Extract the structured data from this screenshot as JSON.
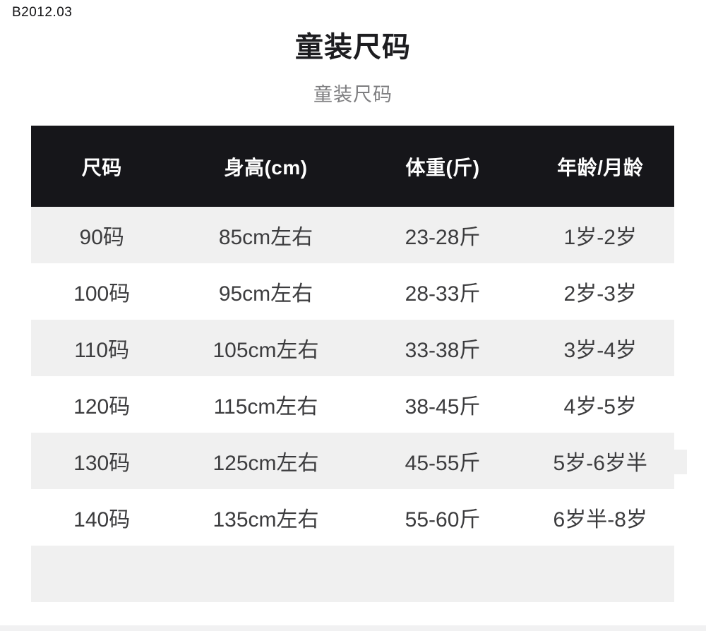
{
  "page": {
    "code": "B2012.03",
    "title": "童装尺码",
    "subtitle": "童装尺码"
  },
  "table": {
    "headers": [
      "尺码",
      "身高(cm)",
      "体重(斤)",
      "年龄/月龄"
    ],
    "rows": [
      {
        "size": "90码",
        "height": "85cm左右",
        "weight": "23-28斤",
        "age": "1岁-2岁"
      },
      {
        "size": "100码",
        "height": "95cm左右",
        "weight": "28-33斤",
        "age": "2岁-3岁"
      },
      {
        "size": "110码",
        "height": "105cm左右",
        "weight": "33-38斤",
        "age": "3岁-4岁"
      },
      {
        "size": "120码",
        "height": "115cm左右",
        "weight": "38-45斤",
        "age": "4岁-5岁"
      },
      {
        "size": "130码",
        "height": "125cm左右",
        "weight": "45-55斤",
        "age": "5岁-6岁半"
      },
      {
        "size": "140码",
        "height": "135cm左右",
        "weight": "55-60斤",
        "age": "6岁半-8岁"
      }
    ]
  },
  "colors": {
    "header_bg": "#16161a",
    "header_text": "#ffffff",
    "row_alt_bg": "#f0f0f0",
    "body_text": "#3c3c3e",
    "subtitle_text": "#7e7e80"
  }
}
